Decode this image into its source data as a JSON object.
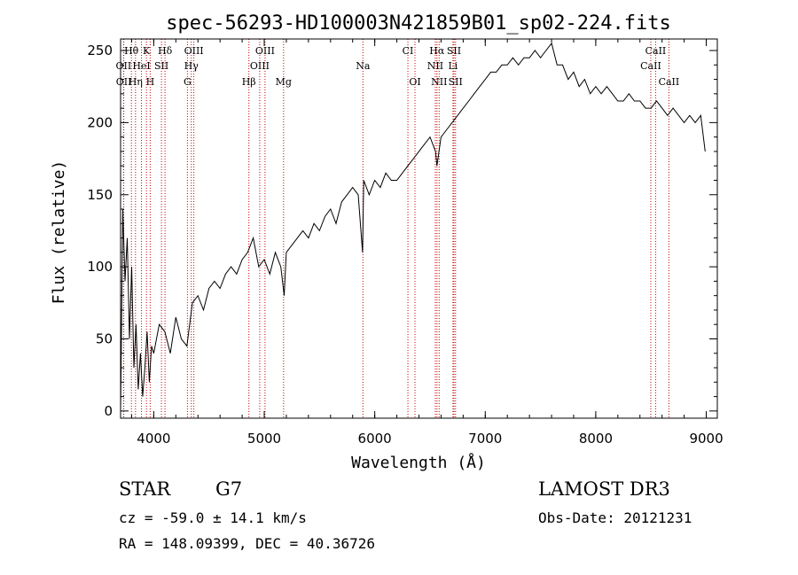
{
  "chart_data": {
    "type": "line",
    "title": "spec-56293-HD100003N421859B01_sp02-224.fits",
    "xlabel": "Wavelength (Å)",
    "ylabel": "Flux (relative)",
    "xlim": [
      3700,
      9100
    ],
    "ylim": [
      -5,
      258
    ],
    "x_ticks": [
      4000,
      5000,
      6000,
      7000,
      8000,
      9000
    ],
    "y_ticks": [
      0,
      50,
      100,
      150,
      200,
      250
    ],
    "grid": false,
    "line_color": "#000000",
    "marker_color": "#cc0000",
    "series": [
      {
        "x": [
          3700,
          3720,
          3740,
          3760,
          3780,
          3800,
          3820,
          3840,
          3860,
          3880,
          3900,
          3920,
          3940,
          3960,
          3980,
          4000,
          4050,
          4100,
          4150,
          4200,
          4250,
          4300,
          4350,
          4400,
          4450,
          4500,
          4550,
          4600,
          4650,
          4700,
          4750,
          4800,
          4850,
          4900,
          4950,
          5000,
          5050,
          5100,
          5150,
          5180,
          5200,
          5250,
          5300,
          5350,
          5400,
          5450,
          5500,
          5550,
          5600,
          5650,
          5700,
          5750,
          5800,
          5850,
          5890,
          5900,
          5950,
          6000,
          6050,
          6100,
          6150,
          6200,
          6250,
          6300,
          6350,
          6400,
          6450,
          6500,
          6550,
          6563,
          6600,
          6650,
          6700,
          6750,
          6800,
          6850,
          6900,
          6950,
          7000,
          7050,
          7100,
          7150,
          7200,
          7250,
          7300,
          7350,
          7400,
          7450,
          7500,
          7550,
          7600,
          7650,
          7700,
          7750,
          7800,
          7850,
          7900,
          7950,
          8000,
          8050,
          8100,
          8150,
          8200,
          8250,
          8300,
          8350,
          8400,
          8450,
          8500,
          8550,
          8600,
          8650,
          8700,
          8750,
          8800,
          8850,
          8900,
          8950,
          8990
        ],
        "y": [
          0,
          140,
          90,
          120,
          50,
          100,
          30,
          60,
          15,
          40,
          10,
          30,
          55,
          20,
          45,
          40,
          60,
          55,
          40,
          65,
          50,
          45,
          75,
          80,
          70,
          85,
          90,
          85,
          95,
          100,
          95,
          105,
          110,
          120,
          100,
          105,
          95,
          110,
          100,
          80,
          110,
          115,
          120,
          125,
          120,
          130,
          125,
          135,
          140,
          130,
          145,
          150,
          155,
          150,
          110,
          160,
          150,
          160,
          155,
          165,
          160,
          160,
          165,
          170,
          175,
          180,
          185,
          190,
          180,
          170,
          190,
          195,
          200,
          205,
          210,
          215,
          220,
          225,
          230,
          235,
          235,
          240,
          240,
          245,
          240,
          245,
          245,
          250,
          245,
          250,
          255,
          240,
          240,
          230,
          235,
          225,
          230,
          220,
          225,
          220,
          225,
          220,
          215,
          215,
          220,
          215,
          215,
          210,
          210,
          215,
          210,
          205,
          210,
          205,
          200,
          205,
          200,
          205,
          180
        ]
      }
    ],
    "lines": [
      {
        "label": "Hθ",
        "x": 3798,
        "row": 0
      },
      {
        "label": "K",
        "x": 3934,
        "row": 0
      },
      {
        "label": "Hδ",
        "x": 4102,
        "row": 0
      },
      {
        "label": "OIII",
        "x": 4363,
        "row": 0
      },
      {
        "label": "OIII",
        "x": 5007,
        "row": 0
      },
      {
        "label": "CI",
        "x": 6300,
        "row": 0
      },
      {
        "label": "Hα",
        "x": 6563,
        "row": 0
      },
      {
        "label": "SII",
        "x": 6717,
        "row": 0
      },
      {
        "label": "CaII",
        "x": 8542,
        "row": 0
      },
      {
        "label": "OII",
        "x": 3727,
        "row": 1
      },
      {
        "label": "HeI",
        "x": 3889,
        "row": 1
      },
      {
        "label": "SII",
        "x": 4070,
        "row": 1
      },
      {
        "label": "Hγ",
        "x": 4340,
        "row": 1
      },
      {
        "label": "OIII",
        "x": 4959,
        "row": 1
      },
      {
        "label": "Na",
        "x": 5893,
        "row": 1
      },
      {
        "label": "NII",
        "x": 6548,
        "row": 1
      },
      {
        "label": "Li",
        "x": 6708,
        "row": 1
      },
      {
        "label": "CaII",
        "x": 8498,
        "row": 1
      },
      {
        "label": "OII",
        "x": 3729,
        "row": 2
      },
      {
        "label": "Hη",
        "x": 3835,
        "row": 2
      },
      {
        "label": "H",
        "x": 3968,
        "row": 2
      },
      {
        "label": "G",
        "x": 4305,
        "row": 2
      },
      {
        "label": "Hβ",
        "x": 4861,
        "row": 2
      },
      {
        "label": "Mg",
        "x": 5175,
        "row": 2
      },
      {
        "label": "OI",
        "x": 6364,
        "row": 2
      },
      {
        "label": "NII",
        "x": 6583,
        "row": 2
      },
      {
        "label": "SII",
        "x": 6731,
        "row": 2
      },
      {
        "label": "CaII",
        "x": 8662,
        "row": 2
      }
    ]
  },
  "info": {
    "object_class": "STAR",
    "subclass": "G7",
    "survey": "LAMOST DR3",
    "cz": "cz = -59.0 ± 14.1 km/s",
    "obs_date": "Obs-Date: 20121231",
    "coords": "RA = 148.09399, DEC =  40.36726"
  }
}
